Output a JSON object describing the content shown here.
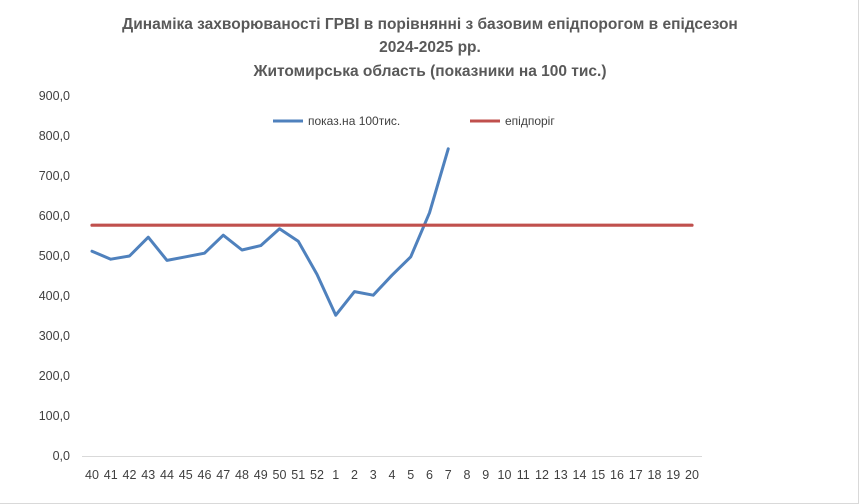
{
  "chart_data": {
    "type": "line",
    "title_lines": [
      "Динаміка захворюваності ГРВІ в порівнянні з базовим епідпорогом в епідсезон",
      "2024-2025 рр.",
      "Житомирська область (показники на 100 тис.)"
    ],
    "x": [
      "40",
      "41",
      "42",
      "43",
      "44",
      "45",
      "46",
      "47",
      "48",
      "49",
      "50",
      "51",
      "52",
      "1",
      "2",
      "3",
      "4",
      "5",
      "6",
      "7",
      "8",
      "9",
      "10",
      "11",
      "12",
      "13",
      "14",
      "15",
      "16",
      "17",
      "18",
      "19",
      "20"
    ],
    "ylim": [
      0,
      900
    ],
    "yticks": [
      0,
      100,
      200,
      300,
      400,
      500,
      600,
      700,
      800,
      900
    ],
    "ytick_labels": [
      "0,0",
      "100,0",
      "200,0",
      "300,0",
      "400,0",
      "500,0",
      "600,0",
      "700,0",
      "800,0",
      "900,0"
    ],
    "grid": false,
    "legend_position": "top",
    "series": [
      {
        "name": "показ.на 100тис.",
        "color": "#4f81bd",
        "values": [
          512,
          492,
          500,
          547,
          489,
          498,
          507,
          552,
          515,
          526,
          568,
          537,
          454,
          352,
          411,
          402,
          452,
          498,
          608,
          768,
          null,
          null,
          null,
          null,
          null,
          null,
          null,
          null,
          null,
          null,
          null,
          null,
          null
        ]
      },
      {
        "name": "епідпоріг",
        "color": "#c0504d",
        "values": [
          577,
          577,
          577,
          577,
          577,
          577,
          577,
          577,
          577,
          577,
          577,
          577,
          577,
          577,
          577,
          577,
          577,
          577,
          577,
          577,
          577,
          577,
          577,
          577,
          577,
          577,
          577,
          577,
          577,
          577,
          577,
          577,
          577
        ]
      }
    ]
  }
}
